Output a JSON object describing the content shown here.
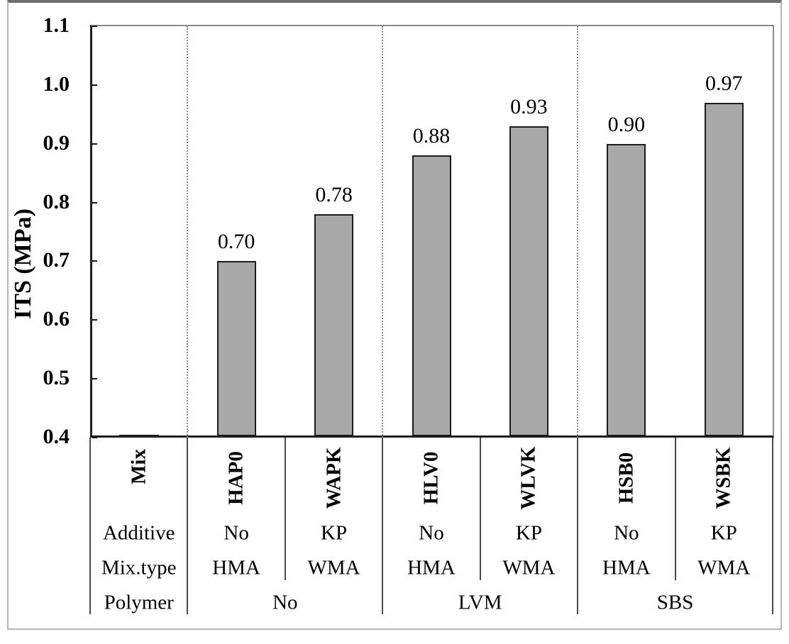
{
  "chart_data": {
    "type": "bar",
    "title": "",
    "ylabel": "ITS (MPa)",
    "xlabel": "",
    "ylim": [
      0.4,
      1.1
    ],
    "ytick_step": 0.1,
    "ytick_labels": [
      "1.1",
      "1.0",
      "0.9",
      "0.8",
      "0.7",
      "0.6",
      "0.5",
      "0.4"
    ],
    "legend": "none",
    "grid": "dotted vertical separators between polymer groups",
    "categories": [
      "HAP0",
      "WAPK",
      "HLV0",
      "WLVK",
      "HSB0",
      "WSBK"
    ],
    "values": [
      0.7,
      0.78,
      0.88,
      0.93,
      0.9,
      0.97
    ],
    "value_labels": [
      "0.70",
      "0.78",
      "0.88",
      "0.93",
      "0.90",
      "0.97"
    ],
    "category_table": {
      "row_headers": {
        "mix": "Mix",
        "additive": "Additive",
        "mixtype": "Mix.type",
        "polymer": "Polymer"
      },
      "additive_values": [
        "No",
        "KP",
        "No",
        "KP",
        "No",
        "KP"
      ],
      "mixtype_values": [
        "HMA",
        "WMA",
        "HMA",
        "WMA",
        "HMA",
        "WMA"
      ],
      "polymer_values": [
        "No",
        "LVM",
        "SBS"
      ]
    }
  },
  "colors": {
    "bar_fill": "#a8a8a8",
    "bar_border": "#1c1c1c",
    "axis": "#1c1c1c",
    "frame_gray": "#8a8a8a",
    "dotted_separator": "#8c8c8c",
    "table_line": "#4a4a4a",
    "outer_border": "#b5b5b5",
    "outer_border_top": "#6f6f6f",
    "text": "#000000"
  }
}
